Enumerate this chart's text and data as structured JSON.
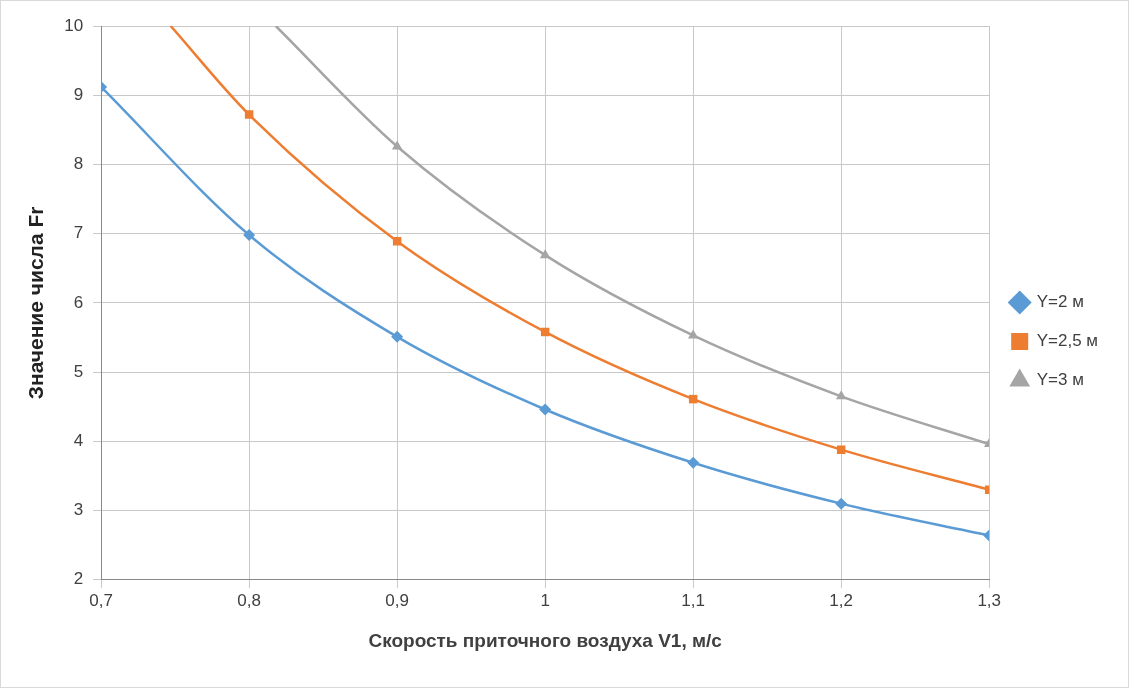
{
  "chart_data": {
    "type": "line",
    "xlabel": "Скорость приточного воздуха V1, м/с",
    "ylabel": "Значение числа Fr",
    "xlim": [
      0.7,
      1.3
    ],
    "xticks": [
      {
        "value": 0.7,
        "label": "0,7"
      },
      {
        "value": 0.8,
        "label": "0,8"
      },
      {
        "value": 0.9,
        "label": "0,9"
      },
      {
        "value": 1,
        "label": "1"
      },
      {
        "value": 1.1,
        "label": "1,1"
      },
      {
        "value": 1.2,
        "label": "1,2"
      },
      {
        "value": 1.3,
        "label": "1,3"
      }
    ],
    "ylim": [
      2,
      10
    ],
    "yticks": [
      2,
      3,
      4,
      5,
      6,
      7,
      8,
      9,
      10
    ],
    "grid": true,
    "legend": "right",
    "series": [
      {
        "name": "Y=2 м",
        "color": "#5b9bd5",
        "marker": "diamond",
        "x": [
          0.7,
          0.8,
          0.9,
          1,
          1.1,
          1.2,
          1.3
        ],
        "values": [
          9.12,
          6.98,
          5.51,
          4.46,
          3.69,
          3.1,
          2.64
        ]
      },
      {
        "name": "Y=2,5 м",
        "color": "#ed7d31",
        "marker": "square",
        "x": [
          0.747,
          0.8,
          0.9,
          1,
          1.1,
          1.2,
          1.3
        ],
        "values": [
          10,
          8.72,
          6.89,
          5.58,
          4.61,
          3.88,
          3.3
        ]
      },
      {
        "name": "Y=3 м",
        "color": "#a5a5a5",
        "marker": "triangle",
        "x": [
          0.818,
          0.9,
          1,
          1.1,
          1.2,
          1.3
        ],
        "values": [
          10,
          8.26,
          6.69,
          5.53,
          4.65,
          3.96
        ]
      }
    ]
  }
}
